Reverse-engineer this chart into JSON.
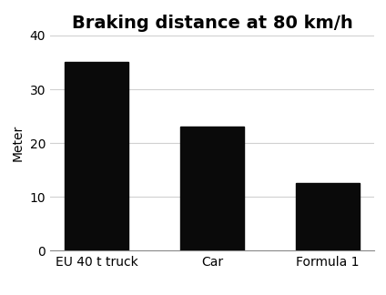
{
  "title": "Braking distance at 80 km/h",
  "categories": [
    "EU 40 t truck",
    "Car",
    "Formula 1"
  ],
  "values": [
    35,
    23,
    12.5
  ],
  "bar_color": "#0a0a0a",
  "ylabel": "Meter",
  "ylim": [
    0,
    40
  ],
  "yticks": [
    0,
    10,
    20,
    30,
    40
  ],
  "title_fontsize": 14,
  "ylabel_fontsize": 10,
  "tick_fontsize": 10,
  "background_color": "#ffffff",
  "bar_width": 0.55,
  "grid_color": "#d0d0d0"
}
